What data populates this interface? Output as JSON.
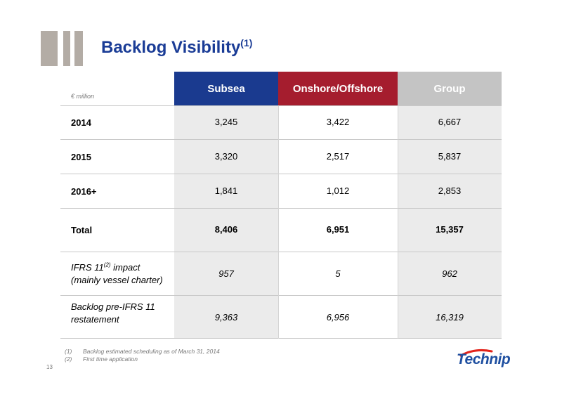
{
  "title": {
    "text": "Backlog Visibility",
    "sup": "(1)"
  },
  "units": "€ million",
  "columns": [
    "Subsea",
    "Onshore/Offshore",
    "Group"
  ],
  "rows": [
    {
      "label": "2014",
      "values": [
        "3,245",
        "3,422",
        "6,667"
      ]
    },
    {
      "label": "2015",
      "values": [
        "3,320",
        "2,517",
        "5,837"
      ]
    },
    {
      "label": "2016+",
      "values": [
        "1,841",
        "1,012",
        "2,853"
      ]
    },
    {
      "label": "Total",
      "values": [
        "8,406",
        "6,951",
        "15,357"
      ]
    },
    {
      "label_pre": "IFRS 11",
      "label_sup": "(2)",
      "label_post": " impact",
      "label_line2": "(mainly vessel charter)",
      "values": [
        "957",
        "5",
        "962"
      ]
    },
    {
      "label_line1": "Backlog pre-IFRS 11",
      "label_line2": "restatement",
      "values": [
        "9,363",
        "6,956",
        "16,319"
      ]
    }
  ],
  "footnotes": [
    {
      "num": "(1)",
      "text": "Backlog estimated scheduling as of March 31, 2014"
    },
    {
      "num": "(2)",
      "text": "First time application"
    }
  ],
  "page_number": "13",
  "logo": {
    "text": "Technip"
  },
  "colors": {
    "subsea": "#1a3a8f",
    "onshore": "#a51d2e",
    "group": "#c4c4c4",
    "title": "#1a3c96"
  }
}
